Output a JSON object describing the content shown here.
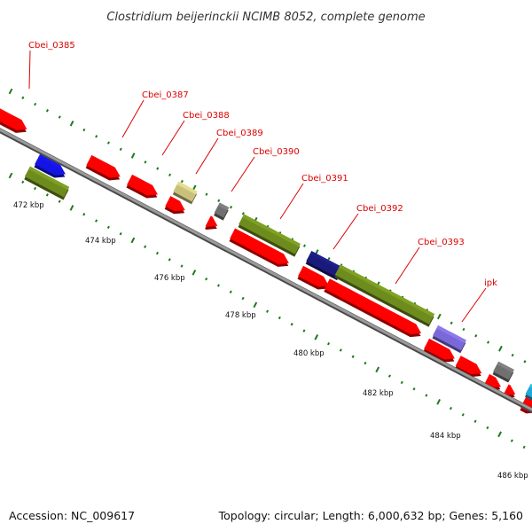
{
  "title": "Clostridium beijerinckii NCIMB 8052, complete genome",
  "footer": {
    "accession": "Accession: NC_009617",
    "summary": "Topology: circular; Length: 6,000,632 bp; Genes: 5,160"
  },
  "colors": {
    "backbone": "#8a8a8a",
    "tick": "#1d7a1d",
    "label": "#dd0000",
    "red": "#ff0000",
    "green": "#6e8c1e",
    "blue": "#1414e6",
    "darkblue": "#1a1a7a",
    "purple": "#7b68d8",
    "tan": "#c9c07c",
    "gray": "#707070",
    "cyan": "#22a8d8"
  },
  "scale_labels": [
    "472 kbp",
    "474 kbp",
    "476 kbp",
    "478 kbp",
    "480 kbp",
    "482 kbp",
    "484 kbp",
    "486 kbp"
  ],
  "gene_labels": [
    "Cbei_0385",
    "Cbei_0387",
    "Cbei_0388",
    "Cbei_0389",
    "Cbei_0390",
    "Cbei_0391",
    "Cbei_0392",
    "Cbei_0393",
    "ipk"
  ]
}
